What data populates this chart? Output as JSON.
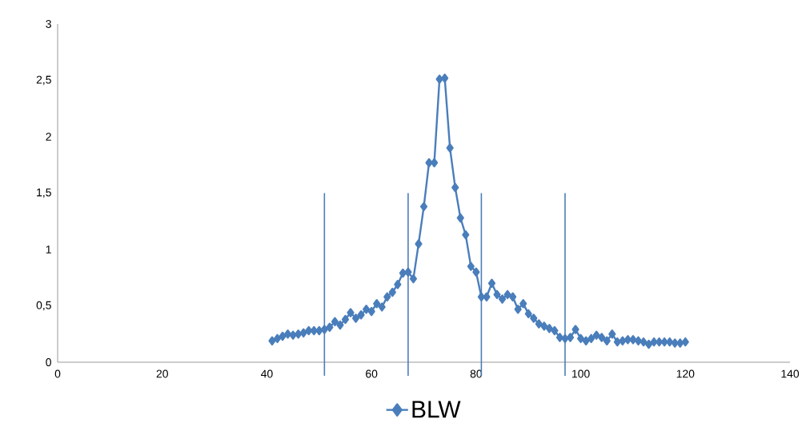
{
  "chart_data": {
    "type": "line",
    "x": [
      41,
      42,
      43,
      44,
      45,
      46,
      47,
      48,
      49,
      50,
      51,
      52,
      53,
      54,
      55,
      56,
      57,
      58,
      59,
      60,
      61,
      62,
      63,
      64,
      65,
      66,
      67,
      68,
      69,
      70,
      71,
      72,
      73,
      74,
      75,
      76,
      77,
      78,
      79,
      80,
      81,
      82,
      83,
      84,
      85,
      86,
      87,
      88,
      89,
      90,
      91,
      92,
      93,
      94,
      95,
      96,
      97,
      98,
      99,
      100,
      101,
      102,
      103,
      104,
      105,
      106,
      107,
      108,
      109,
      110,
      111,
      112,
      113,
      114,
      115,
      116,
      117,
      118,
      119,
      120
    ],
    "series": [
      {
        "name": "BLW",
        "color": "#4a7ebb",
        "values": [
          0.19,
          0.21,
          0.23,
          0.25,
          0.24,
          0.25,
          0.26,
          0.28,
          0.28,
          0.28,
          0.29,
          0.31,
          0.36,
          0.33,
          0.38,
          0.44,
          0.39,
          0.42,
          0.47,
          0.45,
          0.52,
          0.49,
          0.58,
          0.62,
          0.69,
          0.79,
          0.8,
          0.74,
          1.05,
          1.38,
          1.77,
          1.77,
          2.51,
          2.52,
          1.9,
          1.55,
          1.28,
          1.13,
          0.85,
          0.8,
          0.58,
          0.58,
          0.7,
          0.6,
          0.56,
          0.6,
          0.58,
          0.47,
          0.52,
          0.43,
          0.39,
          0.34,
          0.32,
          0.3,
          0.28,
          0.22,
          0.21,
          0.22,
          0.29,
          0.21,
          0.19,
          0.21,
          0.24,
          0.22,
          0.19,
          0.25,
          0.18,
          0.19,
          0.2,
          0.2,
          0.19,
          0.18,
          0.16,
          0.18,
          0.18,
          0.18,
          0.18,
          0.17,
          0.17,
          0.18
        ]
      }
    ],
    "xlim": [
      0,
      140
    ],
    "ylim": [
      0,
      3
    ],
    "xticks": [
      0,
      20,
      40,
      60,
      80,
      100,
      120,
      140
    ],
    "yticks": [
      0,
      {
        "value": 0.5,
        "label": "0,5"
      },
      1,
      {
        "value": 1.5,
        "label": "1,5"
      },
      2,
      {
        "value": 2.5,
        "label": "2,5"
      },
      3
    ],
    "ref_lines": [
      {
        "axis": "x",
        "value": 51,
        "color": "#4a7ebb"
      },
      {
        "axis": "x",
        "value": 67,
        "color": "#4a7ebb"
      },
      {
        "axis": "x",
        "value": 81,
        "color": "#4a7ebb"
      },
      {
        "axis": "x",
        "value": 97,
        "color": "#4a7ebb"
      }
    ],
    "grid": false,
    "legend": "bottom",
    "marker": "diamond",
    "line_style": "solid"
  }
}
